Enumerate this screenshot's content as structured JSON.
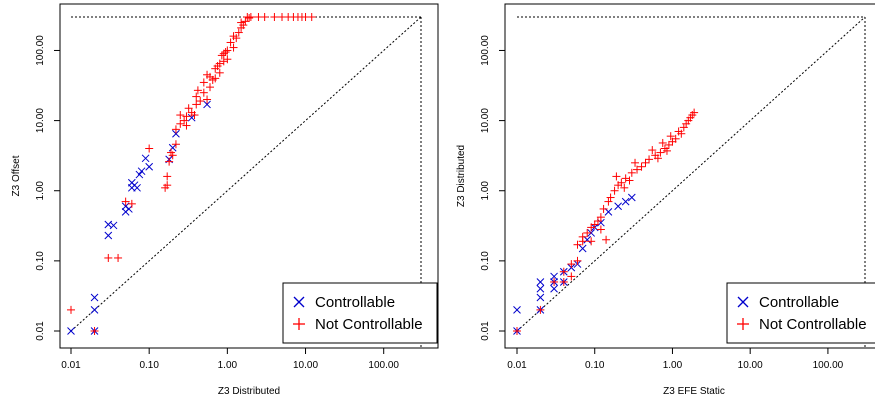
{
  "chart_data": [
    {
      "type": "scatter",
      "xlabel": "Z3 Distributed",
      "ylabel": "Z3 Offset",
      "scale": "log",
      "xlim": [
        0.01,
        300
      ],
      "ylim": [
        0.01,
        300
      ],
      "tick_labels": [
        "0.01",
        "0.10",
        "1.00",
        "10.00",
        "100.00"
      ],
      "tick_values": [
        0.01,
        0.1,
        1,
        10,
        100
      ],
      "legend": {
        "placement": "bottom-right",
        "entries": [
          "Controllable",
          "Not Controllable"
        ]
      },
      "series": [
        {
          "name": "Controllable",
          "marker": "x",
          "color": "#0000cc",
          "points": [
            [
              0.01,
              0.01
            ],
            [
              0.02,
              0.01
            ],
            [
              0.02,
              0.02
            ],
            [
              0.02,
              0.03
            ],
            [
              0.03,
              0.23
            ],
            [
              0.03,
              0.33
            ],
            [
              0.035,
              0.32
            ],
            [
              0.05,
              0.5
            ],
            [
              0.05,
              0.6
            ],
            [
              0.055,
              0.55
            ],
            [
              0.06,
              1.1
            ],
            [
              0.06,
              1.3
            ],
            [
              0.065,
              1.2
            ],
            [
              0.07,
              1.1
            ],
            [
              0.075,
              1.7
            ],
            [
              0.08,
              1.9
            ],
            [
              0.09,
              2.9
            ],
            [
              0.1,
              2.2
            ],
            [
              0.18,
              2.8
            ],
            [
              0.2,
              4.1
            ],
            [
              0.22,
              6.5
            ],
            [
              0.35,
              11
            ],
            [
              0.55,
              17
            ]
          ]
        },
        {
          "name": "Not Controllable",
          "marker": "+",
          "color": "#ff0000",
          "points": [
            [
              0.01,
              0.02
            ],
            [
              0.02,
              0.01
            ],
            [
              0.03,
              0.11
            ],
            [
              0.04,
              0.11
            ],
            [
              0.05,
              0.7
            ],
            [
              0.06,
              0.65
            ],
            [
              0.1,
              4
            ],
            [
              0.16,
              1.1
            ],
            [
              0.17,
              1.2
            ],
            [
              0.17,
              1.6
            ],
            [
              0.18,
              2.6
            ],
            [
              0.19,
              3.5
            ],
            [
              0.2,
              3.2
            ],
            [
              0.22,
              4.6
            ],
            [
              0.22,
              7.5
            ],
            [
              0.25,
              9
            ],
            [
              0.25,
              12
            ],
            [
              0.3,
              8.5
            ],
            [
              0.3,
              11.5
            ],
            [
              0.32,
              15
            ],
            [
              0.35,
              13
            ],
            [
              0.4,
              17
            ],
            [
              0.4,
              22
            ],
            [
              0.45,
              19
            ],
            [
              0.5,
              25
            ],
            [
              0.5,
              35
            ],
            [
              0.55,
              20
            ],
            [
              0.6,
              30
            ],
            [
              0.6,
              42
            ],
            [
              0.7,
              40
            ],
            [
              0.7,
              55
            ],
            [
              0.8,
              48
            ],
            [
              0.8,
              65
            ],
            [
              0.9,
              70
            ],
            [
              0.9,
              90
            ],
            [
              1.0,
              75
            ],
            [
              1.0,
              100
            ],
            [
              1.1,
              130
            ],
            [
              1.2,
              110
            ],
            [
              1.2,
              160
            ],
            [
              1.3,
              150
            ],
            [
              1.4,
              180
            ],
            [
              1.5,
              210
            ],
            [
              1.5,
              250
            ],
            [
              1.6,
              230
            ],
            [
              1.7,
              260
            ],
            [
              1.8,
              300
            ],
            [
              1.9,
              290
            ],
            [
              2,
              300
            ],
            [
              2.5,
              300
            ],
            [
              3,
              300
            ],
            [
              4,
              300
            ],
            [
              5,
              300
            ],
            [
              6,
              300
            ],
            [
              7,
              300
            ],
            [
              8,
              300
            ],
            [
              9,
              300
            ],
            [
              10,
              300
            ],
            [
              12,
              300
            ],
            [
              0.42,
              27
            ],
            [
              0.55,
              45
            ],
            [
              0.65,
              38
            ],
            [
              0.75,
              60
            ],
            [
              0.85,
              85
            ],
            [
              0.95,
              95
            ],
            [
              0.38,
              12
            ],
            [
              0.28,
              10
            ]
          ]
        }
      ],
      "reference_lines": [
        "y = x",
        "x = 300",
        "y = 300"
      ]
    },
    {
      "type": "scatter",
      "xlabel": "Z3 EFE Static",
      "ylabel": "Z3 Distributed",
      "scale": "log",
      "xlim": [
        0.01,
        300
      ],
      "ylim": [
        0.01,
        300
      ],
      "tick_labels": [
        "0.01",
        "0.10",
        "1.00",
        "10.00",
        "100.00"
      ],
      "tick_values": [
        0.01,
        0.1,
        1,
        10,
        100
      ],
      "legend": {
        "placement": "bottom-right",
        "entries": [
          "Controllable",
          "Not Controllable"
        ]
      },
      "series": [
        {
          "name": "Controllable",
          "marker": "x",
          "color": "#0000cc",
          "points": [
            [
              0.01,
              0.01
            ],
            [
              0.01,
              0.02
            ],
            [
              0.02,
              0.02
            ],
            [
              0.02,
              0.03
            ],
            [
              0.02,
              0.04
            ],
            [
              0.02,
              0.05
            ],
            [
              0.03,
              0.04
            ],
            [
              0.03,
              0.05
            ],
            [
              0.03,
              0.06
            ],
            [
              0.04,
              0.05
            ],
            [
              0.04,
              0.07
            ],
            [
              0.05,
              0.08
            ],
            [
              0.06,
              0.09
            ],
            [
              0.07,
              0.15
            ],
            [
              0.08,
              0.2
            ],
            [
              0.09,
              0.25
            ],
            [
              0.1,
              0.3
            ],
            [
              0.12,
              0.35
            ],
            [
              0.15,
              0.5
            ],
            [
              0.2,
              0.6
            ],
            [
              0.25,
              0.7
            ],
            [
              0.3,
              0.8
            ]
          ]
        },
        {
          "name": "Not Controllable",
          "marker": "+",
          "color": "#ff0000",
          "points": [
            [
              0.01,
              0.01
            ],
            [
              0.02,
              0.02
            ],
            [
              0.03,
              0.05
            ],
            [
              0.04,
              0.05
            ],
            [
              0.04,
              0.07
            ],
            [
              0.05,
              0.06
            ],
            [
              0.05,
              0.09
            ],
            [
              0.06,
              0.1
            ],
            [
              0.06,
              0.17
            ],
            [
              0.07,
              0.19
            ],
            [
              0.07,
              0.22
            ],
            [
              0.08,
              0.25
            ],
            [
              0.09,
              0.3
            ],
            [
              0.1,
              0.33
            ],
            [
              0.11,
              0.37
            ],
            [
              0.12,
              0.42
            ],
            [
              0.13,
              0.55
            ],
            [
              0.14,
              0.2
            ],
            [
              0.15,
              0.7
            ],
            [
              0.16,
              0.8
            ],
            [
              0.18,
              1.0
            ],
            [
              0.2,
              1.2
            ],
            [
              0.22,
              1.3
            ],
            [
              0.25,
              1.5
            ],
            [
              0.28,
              1.4
            ],
            [
              0.3,
              1.8
            ],
            [
              0.35,
              2.0
            ],
            [
              0.4,
              2.2
            ],
            [
              0.45,
              2.5
            ],
            [
              0.5,
              2.8
            ],
            [
              0.6,
              3.2
            ],
            [
              0.7,
              3.5
            ],
            [
              0.8,
              4.0
            ],
            [
              0.9,
              4.5
            ],
            [
              1.0,
              5.0
            ],
            [
              1.1,
              5.5
            ],
            [
              1.2,
              7.0
            ],
            [
              1.3,
              6.5
            ],
            [
              1.4,
              8.0
            ],
            [
              1.5,
              9.0
            ],
            [
              1.6,
              10.0
            ],
            [
              1.7,
              11.0
            ],
            [
              1.8,
              12.0
            ],
            [
              1.9,
              13.0
            ],
            [
              0.55,
              3.8
            ],
            [
              0.65,
              2.9
            ],
            [
              0.75,
              4.8
            ],
            [
              0.85,
              3.7
            ],
            [
              0.95,
              6.0
            ],
            [
              0.33,
              2.5
            ],
            [
              0.24,
              1.1
            ],
            [
              0.19,
              1.6
            ],
            [
              0.12,
              0.28
            ],
            [
              0.09,
              0.19
            ]
          ]
        }
      ],
      "reference_lines": [
        "y = x",
        "x = 300",
        "y = 300"
      ]
    }
  ]
}
